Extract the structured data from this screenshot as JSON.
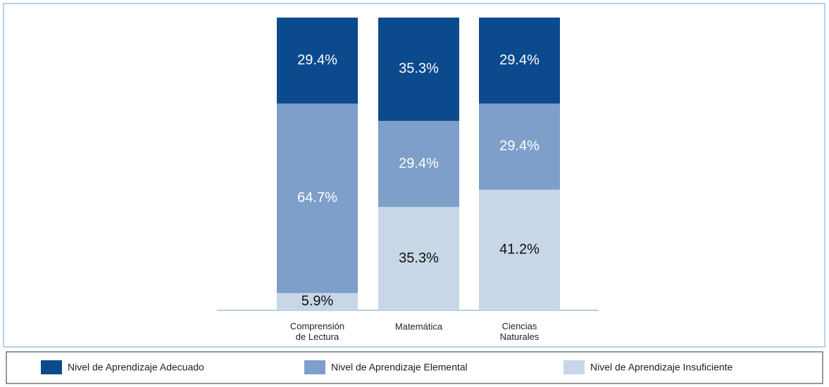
{
  "chart_data": {
    "type": "stacked_bar",
    "categories": [
      "Comprensión\nde Lectura",
      "Matemática",
      "Ciencias\nNaturales"
    ],
    "ylim": [
      0,
      100
    ],
    "series": [
      {
        "name": "Nivel de Aprendizaje Insuficiente",
        "color": "#c8d7e7",
        "label_color": "#111111",
        "values": [
          5.9,
          35.3,
          41.2
        ],
        "value_labels": [
          "5.9%",
          "35.3%",
          "41.2%"
        ]
      },
      {
        "name": "Nivel de Aprendizaje Elemental",
        "color": "#7d9fc9",
        "label_color": "#ffffff",
        "values": [
          64.7,
          29.4,
          29.4
        ],
        "value_labels": [
          "64.7%",
          "29.4%",
          "29.4%"
        ]
      },
      {
        "name": "Nivel de Aprendizaje Adecuado",
        "color": "#0b4a8d",
        "label_color": "#ffffff",
        "values": [
          29.4,
          35.3,
          29.4
        ],
        "value_labels": [
          "29.4%",
          "35.3%",
          "29.4%"
        ]
      }
    ],
    "legend": "bottom"
  }
}
